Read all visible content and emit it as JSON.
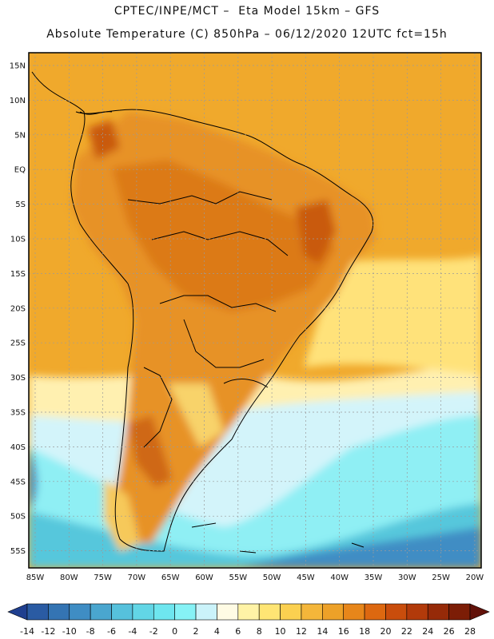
{
  "header": {
    "line1": "CPTEC/INPE/MCT –  Eta Model 15km – GFS",
    "line2": "Absolute Temperature (C) 850hPa – 06/12/2020 12UTC fct=15h"
  },
  "map": {
    "lat_labels": [
      "15N",
      "10N",
      "5N",
      "EQ",
      "5S",
      "10S",
      "15S",
      "20S",
      "25S",
      "30S",
      "35S",
      "40S",
      "45S",
      "50S",
      "55S"
    ],
    "lon_labels": [
      "85W",
      "80W",
      "75W",
      "70W",
      "65W",
      "60W",
      "55W",
      "50W",
      "45W",
      "40W",
      "35W",
      "30W",
      "25W",
      "20W"
    ]
  },
  "colorbar": {
    "labels": [
      "-14",
      "-12",
      "-10",
      "-8",
      "-6",
      "-4",
      "-2",
      "0",
      "2",
      "4",
      "6",
      "8",
      "10",
      "12",
      "14",
      "16",
      "18",
      "20",
      "22",
      "24",
      "26",
      "28"
    ],
    "colors": [
      "#1f3f8f",
      "#2a5ba3",
      "#3474b3",
      "#3f8dc4",
      "#4aa6cf",
      "#56c1dc",
      "#62d6e6",
      "#6ee6ef",
      "#86f2f6",
      "#cbf3fa",
      "#fffbe4",
      "#fff3a6",
      "#ffe574",
      "#fbd050",
      "#f4b63a",
      "#eda128",
      "#e7861a",
      "#dd6810",
      "#c94d0c",
      "#b23a0a",
      "#962a08",
      "#7c1d06",
      "#62120a"
    ]
  }
}
